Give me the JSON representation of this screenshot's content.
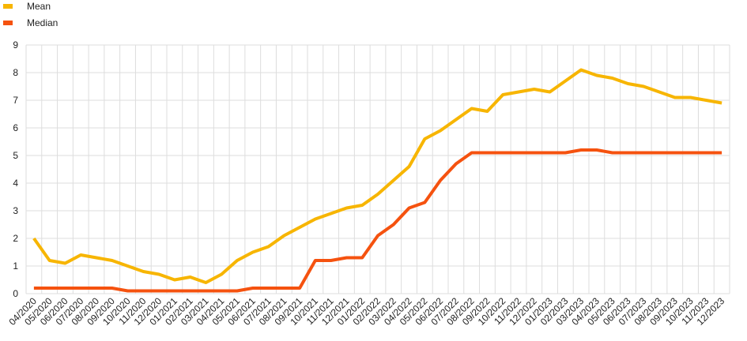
{
  "chart_data": {
    "type": "line",
    "categories": [
      "04/2020",
      "05/2020",
      "06/2020",
      "07/2020",
      "08/2020",
      "09/2020",
      "10/2020",
      "11/2020",
      "12/2020",
      "01/2021",
      "02/2021",
      "03/2021",
      "04/2021",
      "05/2021",
      "06/2021",
      "07/2021",
      "08/2021",
      "09/2021",
      "10/2021",
      "11/2021",
      "12/2021",
      "01/2022",
      "02/2022",
      "03/2022",
      "04/2022",
      "05/2022",
      "06/2022",
      "07/2022",
      "08/2022",
      "09/2022",
      "10/2022",
      "11/2022",
      "12/2022",
      "01/2023",
      "02/2023",
      "03/2023",
      "04/2023",
      "05/2023",
      "06/2023",
      "07/2023",
      "08/2023",
      "09/2023",
      "10/2023",
      "11/2023",
      "12/2023"
    ],
    "series": [
      {
        "name": "Mean",
        "color": "#f7b500",
        "values": [
          2.0,
          1.2,
          1.1,
          1.4,
          1.3,
          1.2,
          1.0,
          0.8,
          0.7,
          0.5,
          0.6,
          0.4,
          0.7,
          1.2,
          1.5,
          1.7,
          2.1,
          2.4,
          2.7,
          2.9,
          3.1,
          3.2,
          3.6,
          4.1,
          4.6,
          5.6,
          5.9,
          6.3,
          6.7,
          6.6,
          7.2,
          7.3,
          7.4,
          7.3,
          7.7,
          8.1,
          7.9,
          7.8,
          7.6,
          7.5,
          7.3,
          7.1,
          7.1,
          7.0,
          6.9
        ]
      },
      {
        "name": "Median",
        "color": "#f5520f",
        "values": [
          0.2,
          0.2,
          0.2,
          0.2,
          0.2,
          0.2,
          0.1,
          0.1,
          0.1,
          0.1,
          0.1,
          0.1,
          0.1,
          0.1,
          0.2,
          0.2,
          0.2,
          0.2,
          1.2,
          1.2,
          1.3,
          1.3,
          2.1,
          2.5,
          3.1,
          3.3,
          4.1,
          4.7,
          5.1,
          5.1,
          5.1,
          5.1,
          5.1,
          5.1,
          5.1,
          5.2,
          5.2,
          5.1,
          5.1,
          5.1,
          5.1,
          5.1,
          5.1,
          5.1,
          5.1
        ]
      }
    ],
    "ylim": [
      0,
      9
    ],
    "yticks": [
      0,
      1,
      2,
      3,
      4,
      5,
      6,
      7,
      8,
      9
    ],
    "grid": true,
    "legend": "top-left"
  }
}
